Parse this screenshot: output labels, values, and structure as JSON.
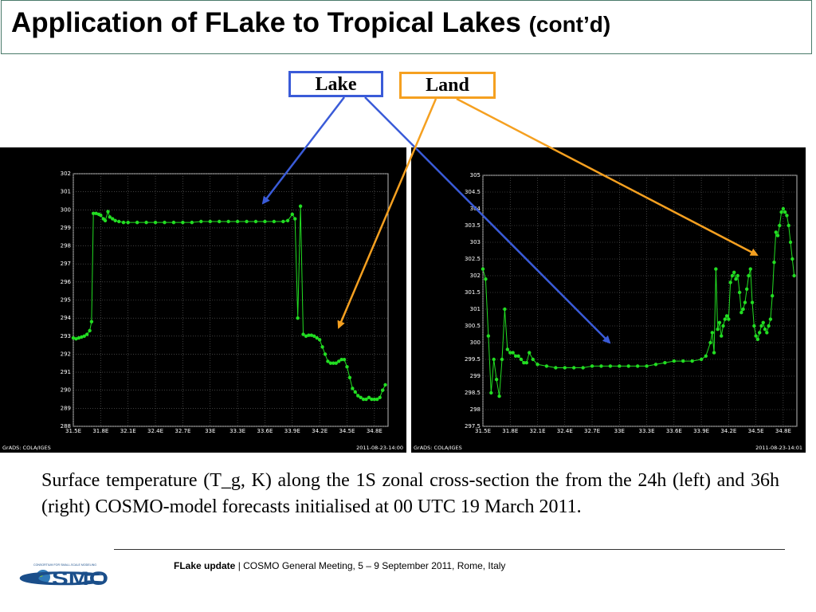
{
  "slide": {
    "title_main": "Application of FLake to Tropical Lakes",
    "title_suffix": "(cont’d)",
    "lake_label": "Lake",
    "land_label": "Land",
    "caption": "Surface temperature (T_g, K) along the 1S zonal cross-section the from the 24h (left) and 36h (right) COSMO-model  forecasts initialised at 00 UTC 19 March 2011.",
    "footer_bold": "FLake update",
    "footer_rest": " | COSMO General Meeting, 5 – 9 September 2011, Rome, Italy",
    "logo_text": "COSMO",
    "logo_small": "CONSORTIUM FOR SMALL-SCALE MODELING"
  },
  "colors": {
    "lake_arrow": "#3a5bd8",
    "land_arrow": "#f5a020",
    "series": "#22dd22",
    "plot_bg": "#000000",
    "grid": "#666666"
  },
  "chart_data": [
    {
      "type": "line",
      "footer_left": "GrADS: COLA/IGES",
      "footer_right": "2011-08-23-14:00",
      "xlim": [
        31.5,
        34.95
      ],
      "ylim": [
        288,
        302
      ],
      "x_ticks": [
        "31.5E",
        "31.8E",
        "32.1E",
        "32.4E",
        "32.7E",
        "33E",
        "33.3E",
        "33.6E",
        "33.9E",
        "34.2E",
        "34.5E",
        "34.8E"
      ],
      "x_tick_values": [
        31.5,
        31.8,
        32.1,
        32.4,
        32.7,
        33.0,
        33.3,
        33.6,
        33.9,
        34.2,
        34.5,
        34.8
      ],
      "y_ticks": [
        288,
        289,
        290,
        291,
        292,
        293,
        294,
        295,
        296,
        297,
        298,
        299,
        300,
        301,
        302
      ],
      "series": [
        {
          "x": [
            31.5,
            31.53,
            31.56,
            31.59,
            31.62,
            31.65,
            31.68,
            31.7,
            31.72,
            31.75,
            31.78,
            31.8,
            31.83,
            31.85,
            31.88,
            31.9,
            31.93,
            31.96,
            32.0,
            32.05,
            32.1,
            32.2,
            32.3,
            32.4,
            32.5,
            32.6,
            32.7,
            32.8,
            32.9,
            33.0,
            33.1,
            33.2,
            33.3,
            33.4,
            33.5,
            33.6,
            33.7,
            33.8,
            33.85,
            33.9,
            33.93,
            33.96,
            33.99,
            34.02,
            34.05,
            34.08,
            34.11,
            34.14,
            34.17,
            34.2,
            34.23,
            34.26,
            34.29,
            34.32,
            34.35,
            34.38,
            34.41,
            34.44,
            34.47,
            34.5,
            34.53,
            34.56,
            34.59,
            34.62,
            34.65,
            34.68,
            34.71,
            34.74,
            34.77,
            34.8,
            34.83,
            34.86,
            34.89,
            34.92
          ],
          "y": [
            292.9,
            292.85,
            292.9,
            292.95,
            293.0,
            293.1,
            293.3,
            293.8,
            299.8,
            299.8,
            299.75,
            299.7,
            299.5,
            299.4,
            299.9,
            299.6,
            299.5,
            299.4,
            299.35,
            299.3,
            299.3,
            299.3,
            299.3,
            299.3,
            299.3,
            299.3,
            299.3,
            299.3,
            299.35,
            299.35,
            299.35,
            299.35,
            299.35,
            299.35,
            299.35,
            299.35,
            299.35,
            299.35,
            299.4,
            299.75,
            299.5,
            294.0,
            300.2,
            293.1,
            293.0,
            293.05,
            293.05,
            293.0,
            292.9,
            292.8,
            292.4,
            292.0,
            291.6,
            291.5,
            291.5,
            291.5,
            291.6,
            291.7,
            291.7,
            291.3,
            290.7,
            290.1,
            289.9,
            289.7,
            289.6,
            289.5,
            289.5,
            289.6,
            289.5,
            289.5,
            289.5,
            289.6,
            290.0,
            290.3
          ]
        }
      ]
    },
    {
      "type": "line",
      "footer_left": "GrADS: COLA/IGES",
      "footer_right": "2011-08-23-14:01",
      "xlim": [
        31.5,
        34.95
      ],
      "ylim": [
        297.5,
        305
      ],
      "x_ticks": [
        "31.5E",
        "31.8E",
        "32.1E",
        "32.4E",
        "32.7E",
        "33E",
        "33.3E",
        "33.6E",
        "33.9E",
        "34.2E",
        "34.5E",
        "34.8E"
      ],
      "x_tick_values": [
        31.5,
        31.8,
        32.1,
        32.4,
        32.7,
        33.0,
        33.3,
        33.6,
        33.9,
        34.2,
        34.5,
        34.8
      ],
      "y_ticks": [
        297.5,
        298,
        298.5,
        299,
        299.5,
        300,
        300.5,
        301,
        301.5,
        302,
        302.5,
        303,
        303.5,
        304,
        304.5,
        305
      ],
      "series": [
        {
          "x": [
            31.5,
            31.53,
            31.56,
            31.59,
            31.62,
            31.65,
            31.68,
            31.71,
            31.74,
            31.77,
            31.8,
            31.83,
            31.86,
            31.89,
            31.92,
            31.95,
            31.98,
            32.01,
            32.05,
            32.1,
            32.2,
            32.3,
            32.4,
            32.5,
            32.6,
            32.7,
            32.8,
            32.9,
            33.0,
            33.1,
            33.2,
            33.3,
            33.4,
            33.5,
            33.6,
            33.7,
            33.8,
            33.9,
            33.95,
            34.0,
            34.02,
            34.04,
            34.06,
            34.08,
            34.1,
            34.12,
            34.14,
            34.16,
            34.18,
            34.2,
            34.22,
            34.24,
            34.26,
            34.28,
            34.3,
            34.32,
            34.34,
            34.36,
            34.38,
            34.4,
            34.42,
            34.44,
            34.46,
            34.48,
            34.5,
            34.52,
            34.54,
            34.56,
            34.58,
            34.6,
            34.62,
            34.64,
            34.66,
            34.68,
            34.7,
            34.72,
            34.74,
            34.76,
            34.78,
            34.8,
            34.82,
            34.84,
            34.86,
            34.88,
            34.9,
            34.92
          ],
          "y": [
            302.2,
            301.9,
            300.2,
            298.5,
            299.5,
            298.9,
            298.4,
            299.5,
            301.0,
            299.8,
            299.7,
            299.7,
            299.6,
            299.6,
            299.5,
            299.4,
            299.4,
            299.7,
            299.5,
            299.35,
            299.3,
            299.25,
            299.25,
            299.25,
            299.25,
            299.3,
            299.3,
            299.3,
            299.3,
            299.3,
            299.3,
            299.3,
            299.35,
            299.4,
            299.45,
            299.45,
            299.45,
            299.5,
            299.6,
            300.0,
            300.3,
            299.7,
            302.2,
            300.4,
            300.6,
            300.2,
            300.5,
            300.7,
            300.8,
            300.7,
            301.8,
            302.0,
            302.1,
            301.9,
            302.0,
            301.5,
            300.9,
            301.0,
            301.2,
            301.6,
            302.0,
            302.2,
            301.2,
            300.5,
            300.2,
            300.1,
            300.3,
            300.5,
            300.6,
            300.4,
            300.3,
            300.5,
            300.7,
            301.4,
            302.4,
            303.3,
            303.2,
            303.5,
            303.9,
            304.0,
            303.9,
            303.8,
            303.5,
            303.0,
            302.5,
            302.0
          ]
        }
      ]
    }
  ]
}
